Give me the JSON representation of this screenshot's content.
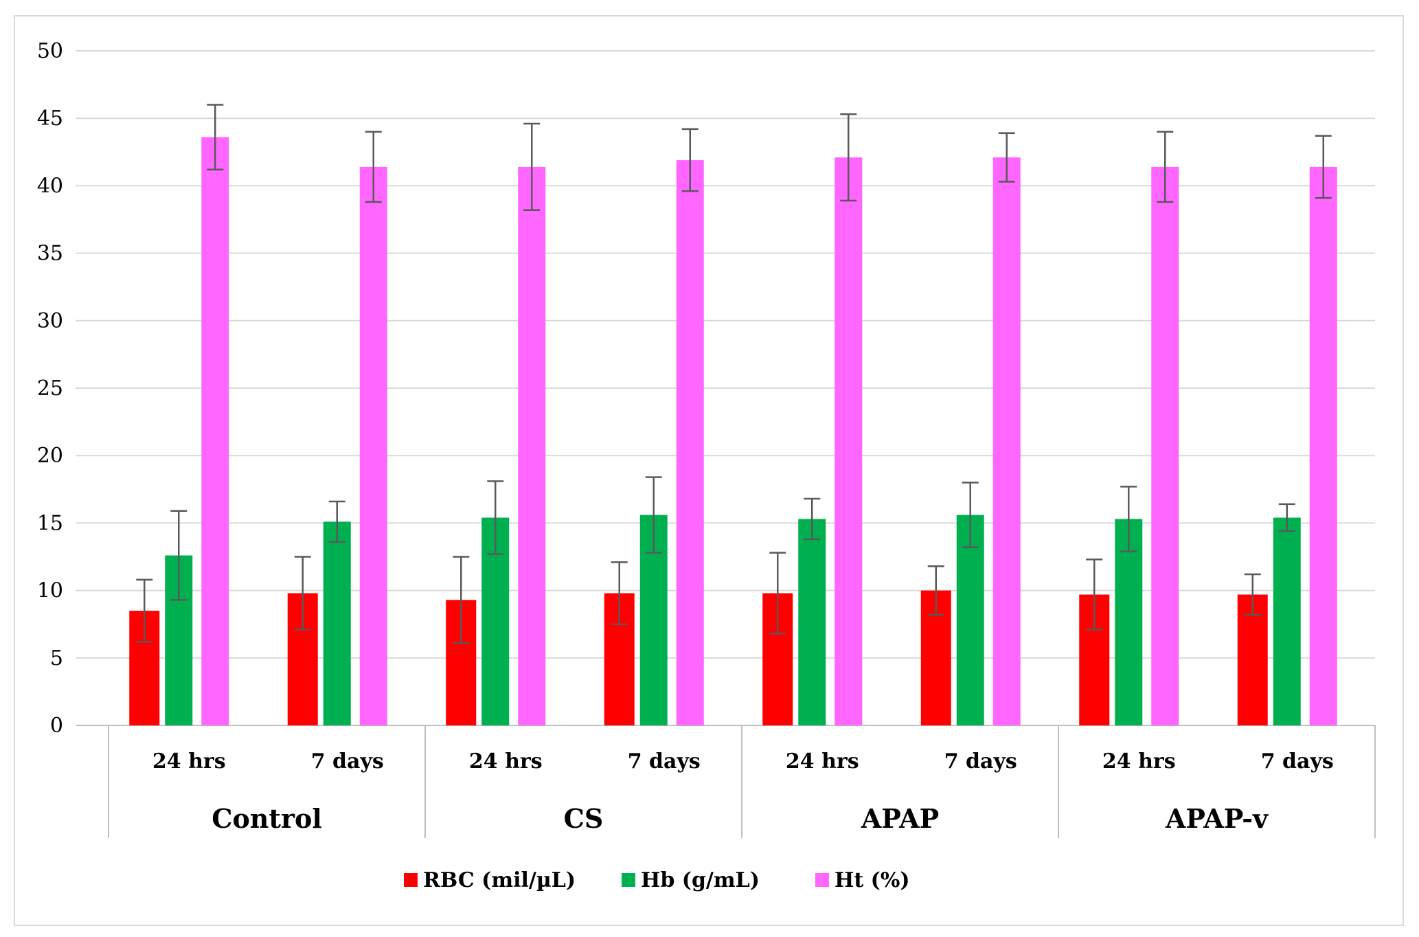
{
  "chart_data": {
    "type": "bar",
    "title": "",
    "xlabel": "",
    "ylabel": "",
    "ylim": [
      0,
      50
    ],
    "yticks": [
      "0",
      "5",
      "10",
      "15",
      "20",
      "25",
      "30",
      "35",
      "40",
      "45",
      "50"
    ],
    "groups": [
      {
        "name": "Control",
        "subcategories": [
          "24 hrs",
          "7 days"
        ]
      },
      {
        "name": "CS",
        "subcategories": [
          "24 hrs",
          "7 days"
        ]
      },
      {
        "name": "APAP",
        "subcategories": [
          "24 hrs",
          "7 days"
        ]
      },
      {
        "name": "APAP-v",
        "subcategories": [
          "24 hrs",
          "7 days"
        ]
      }
    ],
    "series": [
      {
        "name": "RBC (mil/µL)",
        "color": "#ff0000",
        "values": [
          8.5,
          9.8,
          9.3,
          9.8,
          9.8,
          10.0,
          9.7,
          9.7
        ],
        "errors": [
          2.3,
          2.7,
          3.2,
          2.3,
          3.0,
          1.8,
          2.6,
          1.5
        ]
      },
      {
        "name": "Hb (g/mL)",
        "color": "#00b050",
        "values": [
          12.6,
          15.1,
          15.4,
          15.6,
          15.3,
          15.6,
          15.3,
          15.4
        ],
        "errors": [
          3.3,
          1.5,
          2.7,
          2.8,
          1.5,
          2.4,
          2.4,
          1.0
        ]
      },
      {
        "name": "Ht (%)",
        "color": "#ff66ff",
        "values": [
          43.6,
          41.4,
          41.4,
          41.9,
          42.1,
          42.1,
          41.4,
          41.4
        ],
        "errors": [
          2.4,
          2.6,
          3.2,
          2.3,
          3.2,
          1.8,
          2.6,
          2.3
        ]
      }
    ],
    "legend_position": "bottom"
  }
}
